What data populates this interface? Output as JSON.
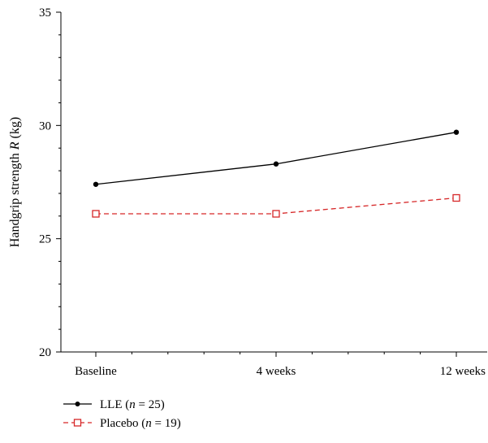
{
  "chart_data": {
    "type": "line",
    "title": "",
    "xlabel": "",
    "ylabel": "Handgrip strength R (kg)",
    "ylabel_parts": {
      "before": "Handgrip strength ",
      "italic": "R",
      "after": " (kg)"
    },
    "categories": [
      "Baseline",
      "4 weeks",
      "12 weeks"
    ],
    "ylim": [
      20,
      35
    ],
    "y_major_ticks": [
      20,
      25,
      30,
      35
    ],
    "y_minor_step": 1,
    "grid": false,
    "legend_position": "bottom-left",
    "series": [
      {
        "name": "LLE (n = 25)",
        "legend_parts": {
          "label": "LLE (",
          "italic": "n",
          "rest": " = 25)"
        },
        "values": [
          27.4,
          28.3,
          29.7
        ],
        "color": "#000000",
        "line_style": "solid",
        "marker": "filled-circle"
      },
      {
        "name": "Placebo (n = 19)",
        "legend_parts": {
          "label": "Placebo (",
          "italic": "n",
          "rest": " = 19)"
        },
        "values": [
          26.1,
          26.1,
          26.8
        ],
        "color": "#d62728",
        "line_style": "dashed",
        "marker": "open-square"
      }
    ]
  }
}
